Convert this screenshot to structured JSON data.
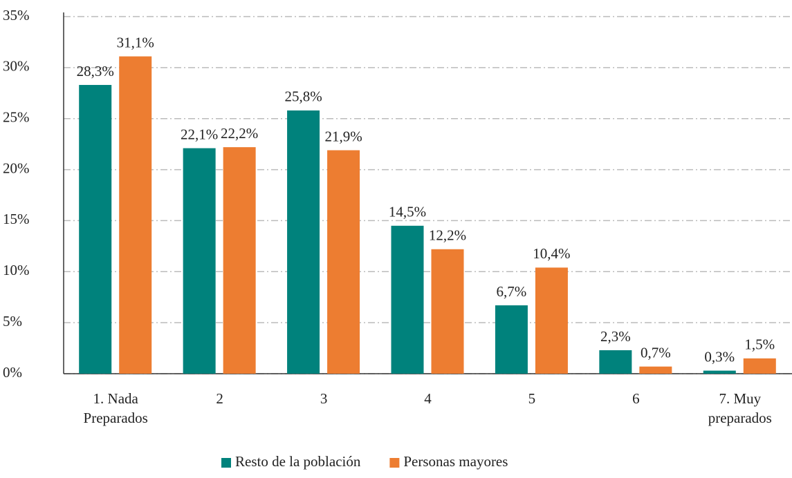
{
  "chart_data": {
    "type": "bar",
    "categories": [
      "1. Nada Preparados",
      "2",
      "3",
      "4",
      "5",
      "6",
      "7. Muy preparados"
    ],
    "series": [
      {
        "name": "Resto de la población",
        "color": "#00827c",
        "values": [
          28.3,
          22.1,
          25.8,
          14.5,
          6.7,
          2.3,
          0.3
        ],
        "value_labels": [
          "28,3%",
          "22,1%",
          "25,8%",
          "14,5%",
          "6,7%",
          "2,3%",
          "0,3%"
        ]
      },
      {
        "name": "Personas mayores",
        "color": "#ed7d31",
        "values": [
          31.1,
          22.2,
          21.9,
          12.2,
          10.4,
          0.7,
          1.5
        ],
        "value_labels": [
          "31,1%",
          "22,2%",
          "21,9%",
          "12,2%",
          "10,4%",
          "0,7%",
          "1,5%"
        ]
      }
    ],
    "ylim": [
      0,
      35
    ],
    "yticks": [
      {
        "value": 0,
        "label": "0%"
      },
      {
        "value": 5,
        "label": "5%"
      },
      {
        "value": 10,
        "label": "10%"
      },
      {
        "value": 15,
        "label": "15%"
      },
      {
        "value": 20,
        "label": "20%"
      },
      {
        "value": 25,
        "label": "25%"
      },
      {
        "value": 30,
        "label": "30%"
      },
      {
        "value": 35,
        "label": "35%"
      }
    ],
    "grid": true,
    "legend": "bottom"
  }
}
